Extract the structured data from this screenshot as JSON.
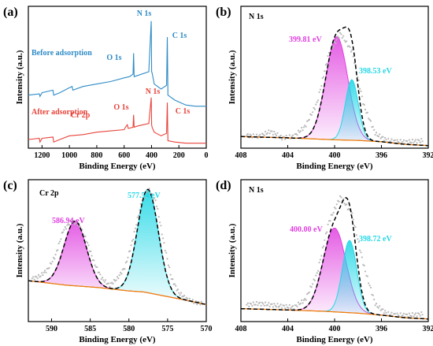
{
  "chart_data": [
    {
      "panel": "(a)",
      "type": "line",
      "xlabel": "Binding Energy (eV)",
      "ylabel": "Intensity (a.u.)",
      "xlim": [
        1300,
        0
      ],
      "x_ticks": [
        "1200",
        "1000",
        "800",
        "600",
        "400",
        "200",
        "0"
      ],
      "x_tick_values": [
        1200,
        1000,
        800,
        600,
        400,
        200,
        0
      ],
      "series": [
        {
          "name": "Before adsorption",
          "color": "#2e8bc6",
          "x": [
            1300,
            1220,
            1215,
            1200,
            1120,
            1115,
            1070,
            1000,
            980,
            975,
            900,
            800,
            700,
            600,
            560,
            535,
            531,
            527,
            500,
            420,
            402,
            399,
            396,
            380,
            330,
            290,
            285,
            280,
            230,
            150,
            80,
            0
          ],
          "y": [
            38,
            39,
            37,
            40,
            42,
            38,
            40,
            44,
            45,
            42,
            45,
            47,
            49,
            52,
            53,
            55,
            72,
            53,
            54,
            57,
            98,
            57,
            56,
            47,
            43,
            46,
            85,
            38,
            34,
            30,
            29,
            29
          ]
        },
        {
          "name": "After adsorption",
          "color": "#e8433a",
          "x": [
            1300,
            1220,
            1215,
            1200,
            1120,
            1115,
            1070,
            1000,
            900,
            800,
            700,
            600,
            590,
            577,
            570,
            535,
            531,
            527,
            500,
            420,
            402,
            399,
            396,
            380,
            330,
            290,
            285,
            280,
            230,
            150,
            80,
            0
          ],
          "y": [
            2,
            3,
            0,
            3,
            4,
            0,
            2,
            5,
            6,
            8,
            9,
            10,
            12,
            14,
            11,
            12,
            22,
            12,
            13,
            15,
            36,
            14,
            12,
            8,
            5,
            7,
            32,
            1,
            0,
            -1,
            -1,
            -1
          ]
        }
      ],
      "annotations": [
        {
          "text": "N 1s",
          "color": "#2e8bc6"
        },
        {
          "text": "O 1s",
          "color": "#2e8bc6"
        },
        {
          "text": "C 1s",
          "color": "#2e8bc6"
        },
        {
          "text": "Before adsorption",
          "color": "#2e8bc6"
        },
        {
          "text": "After adsorption",
          "color": "#e8433a"
        },
        {
          "text": "N 1s",
          "color": "#e8433a"
        },
        {
          "text": "O 1s",
          "color": "#e8433a"
        },
        {
          "text": "C 1s",
          "color": "#e8433a"
        },
        {
          "text": "Cr 2p",
          "color": "#e8433a"
        }
      ]
    },
    {
      "panel": "(b)",
      "type": "line",
      "xlabel": "Binding Energy (eV)",
      "ylabel": "Intensity (a.u.)",
      "xlim": [
        408,
        392
      ],
      "x_ticks": [
        "408",
        "404",
        "400",
        "396",
        "392"
      ],
      "x_tick_values": [
        408,
        404,
        400,
        396,
        392
      ],
      "ylim": [
        -5,
        105
      ],
      "baseline": {
        "x": [
          408,
          404,
          400,
          398,
          396,
          394,
          392
        ],
        "y": [
          4,
          3,
          1.5,
          1,
          0,
          -2,
          -3
        ]
      },
      "peaks": [
        {
          "label": "399.81 eV",
          "center": 399.81,
          "height": 80,
          "fwhm": 2.2,
          "color": "#e040e0"
        },
        {
          "label": "398.53 eV",
          "center": 398.53,
          "height": 47,
          "fwhm": 1.3,
          "color": "#22d8e6"
        }
      ],
      "experimental": {
        "x": [
          407.5,
          406.5,
          405.5,
          405.0,
          404.5,
          403.5,
          402.5,
          401.5,
          400.5,
          399.5,
          398.5,
          397.5,
          396.5,
          395.5,
          394.5,
          393.5,
          392.5
        ],
        "y": [
          5,
          4,
          8,
          6,
          3,
          4,
          12,
          30,
          68,
          84,
          70,
          28,
          6,
          1,
          0,
          0,
          1
        ]
      },
      "annotations": [
        {
          "text": "N 1s",
          "color": "#000000"
        }
      ]
    },
    {
      "panel": "(c)",
      "type": "line",
      "xlabel": "Binding Energy (eV)",
      "ylabel": "Intensity (a.u.)",
      "xlim": [
        593,
        570
      ],
      "x_ticks": [
        "590",
        "585",
        "580",
        "575",
        "570"
      ],
      "x_tick_values": [
        590,
        585,
        580,
        575,
        570
      ],
      "ylim": [
        -20,
        105
      ],
      "baseline": {
        "x": [
          593,
          588,
          584,
          580,
          578,
          575,
          572,
          570
        ],
        "y": [
          16,
          12,
          10,
          7,
          6,
          2,
          -2,
          -5
        ]
      },
      "peaks": [
        {
          "label": "586.94 eV",
          "center": 586.94,
          "height": 57,
          "fwhm": 3.4,
          "color": "#e040e0"
        },
        {
          "label": "577.54 eV",
          "center": 577.54,
          "height": 91,
          "fwhm": 3.2,
          "color": "#22d8e6"
        }
      ],
      "experimental": {
        "x": [
          592.5,
          591.5,
          590.5,
          589.5,
          588.5,
          587.5,
          586.5,
          585.5,
          584.5,
          583.5,
          582.5,
          581.5,
          580.5,
          579.5,
          578.5,
          577.5,
          576.5,
          575.5,
          574.5,
          573.5,
          572.5,
          571.5,
          570.5
        ],
        "y": [
          18,
          20,
          26,
          38,
          60,
          68,
          66,
          52,
          32,
          18,
          12,
          18,
          28,
          52,
          82,
          97,
          86,
          50,
          18,
          5,
          0,
          -3,
          -4
        ]
      },
      "annotations": [
        {
          "text": "Cr 2p",
          "color": "#000000"
        }
      ]
    },
    {
      "panel": "(d)",
      "type": "line",
      "xlabel": "Binding Energy (eV)",
      "ylabel": "Intensity (a.u.)",
      "xlim": [
        408,
        392
      ],
      "x_ticks": [
        "408",
        "404",
        "400",
        "396",
        "392"
      ],
      "x_tick_values": [
        408,
        404,
        400,
        396,
        392
      ],
      "ylim": [
        -5,
        105
      ],
      "baseline": {
        "x": [
          408,
          404,
          401,
          398,
          396,
          394,
          392
        ],
        "y": [
          5,
          4,
          3,
          1.5,
          0,
          -2,
          -3
        ]
      },
      "peaks": [
        {
          "label": "400.00 eV",
          "center": 400.0,
          "height": 65,
          "fwhm": 2.3,
          "color": "#e040e0"
        },
        {
          "label": "398.72 eV",
          "center": 398.72,
          "height": 56,
          "fwhm": 1.45,
          "color": "#22d8e6"
        }
      ],
      "experimental": {
        "x": [
          407.5,
          406.5,
          405.5,
          404.5,
          403.5,
          402.5,
          401.5,
          400.5,
          399.5,
          398.5,
          397.5,
          396.5,
          395.5,
          394.5,
          393.5,
          392.5
        ],
        "y": [
          8,
          9,
          8,
          7,
          6,
          12,
          32,
          72,
          92,
          78,
          38,
          8,
          1,
          0,
          0,
          1
        ]
      },
      "annotations": [
        {
          "text": "N 1s",
          "color": "#000000"
        }
      ]
    }
  ]
}
